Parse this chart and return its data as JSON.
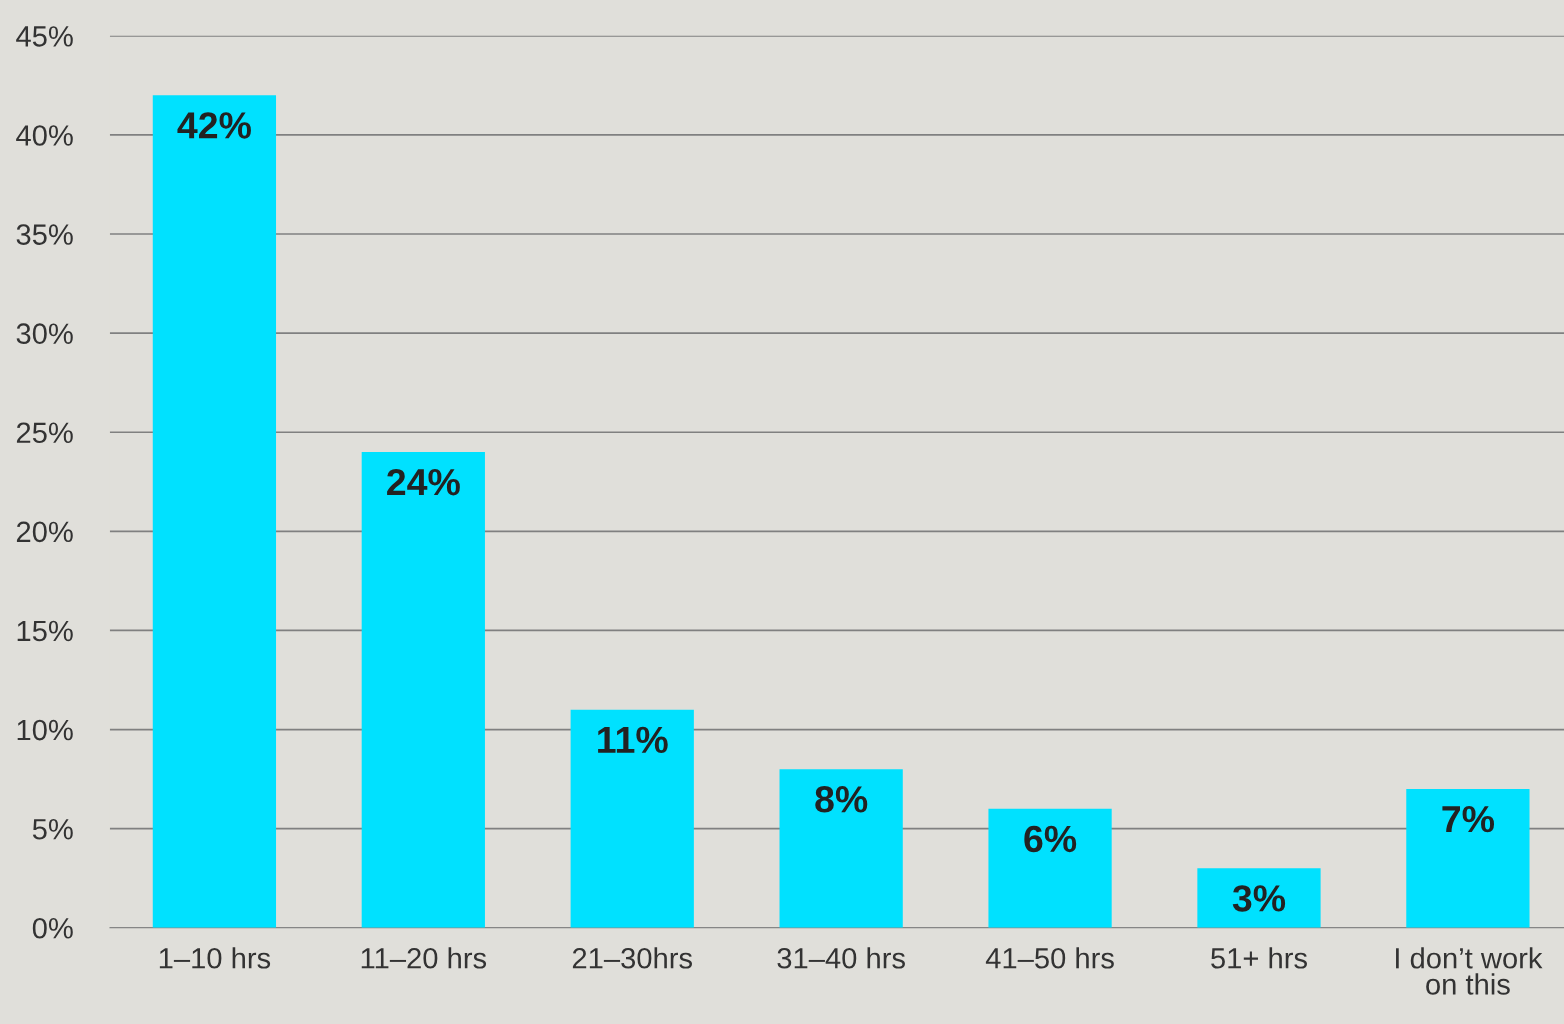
{
  "chart_data": {
    "type": "bar",
    "categories": [
      "1–10 hrs",
      "11–20 hrs",
      "21–30hrs",
      "31–40 hrs",
      "41–50 hrs",
      "51+ hrs",
      "I don’t work\non this"
    ],
    "values": [
      42,
      24,
      11,
      8,
      6,
      3,
      7
    ],
    "value_labels": [
      "42%",
      "24%",
      "11%",
      "8%",
      "6%",
      "3%",
      "7%"
    ],
    "color": "#00e1ff",
    "ylim": [
      0,
      45
    ],
    "yticks": [
      {
        "value": 0,
        "label": "0%"
      },
      {
        "value": 5,
        "label": "5%"
      },
      {
        "value": 10,
        "label": "10%"
      },
      {
        "value": 15,
        "label": "15%"
      },
      {
        "value": 20,
        "label": "20%"
      },
      {
        "value": 25,
        "label": "25%"
      },
      {
        "value": 30,
        "label": "30%"
      },
      {
        "value": 35,
        "label": "35%"
      },
      {
        "value": 40,
        "label": "40%"
      },
      {
        "value": 45,
        "label": "45%"
      }
    ],
    "grid": "y"
  }
}
